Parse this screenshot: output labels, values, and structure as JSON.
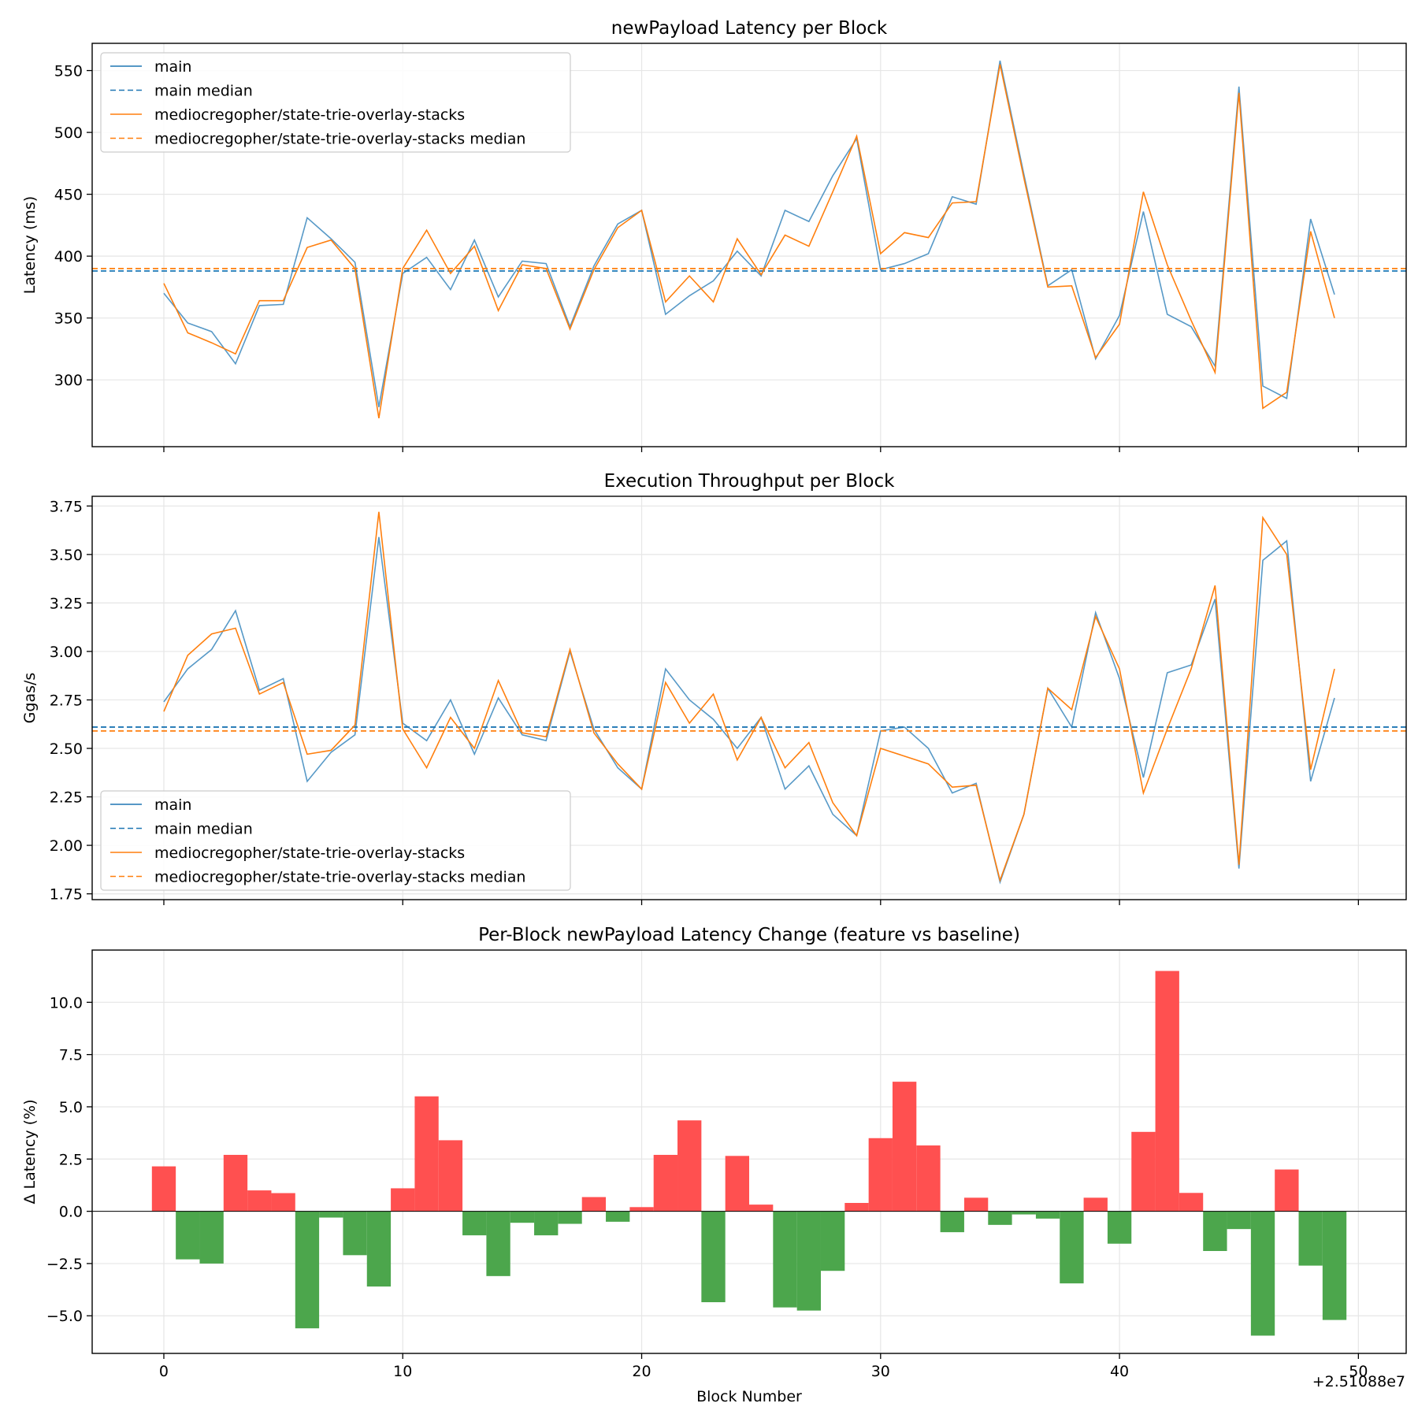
{
  "figure": {
    "xlabel": "Block Number",
    "x_offset_label": "+2.51088e7"
  },
  "chart_data": [
    {
      "type": "line",
      "title": "newPayload Latency per Block",
      "xlabel": "",
      "ylabel": "Latency (ms)",
      "xlim": [
        -3,
        52
      ],
      "ylim": [
        246,
        572
      ],
      "xticks": [
        0,
        10,
        20,
        30,
        40,
        50
      ],
      "yticks": [
        300,
        350,
        400,
        450,
        500,
        550
      ],
      "grid": true,
      "legend_position": "upper-left",
      "x": [
        0,
        1,
        2,
        3,
        4,
        5,
        6,
        7,
        8,
        9,
        10,
        11,
        12,
        13,
        14,
        15,
        16,
        17,
        18,
        19,
        20,
        21,
        22,
        23,
        24,
        25,
        26,
        27,
        28,
        29,
        30,
        31,
        32,
        33,
        34,
        35,
        36,
        37,
        38,
        39,
        40,
        41,
        42,
        43,
        44,
        45,
        46,
        47,
        48,
        49
      ],
      "series": [
        {
          "name": "main",
          "color": "#1f77b4",
          "style": "solid",
          "values": [
            370,
            346,
            339,
            313,
            360,
            361,
            431,
            414,
            395,
            278,
            386,
            399,
            373,
            413,
            367,
            396,
            394,
            343,
            392,
            426,
            437,
            353,
            368,
            380,
            404,
            384,
            437,
            428,
            465,
            495,
            389,
            394,
            402,
            448,
            442,
            558,
            466,
            376,
            389,
            317,
            352,
            436,
            353,
            343,
            311,
            537,
            295,
            285,
            430,
            369
          ]
        },
        {
          "name": "main median",
          "color": "#1f77b4",
          "style": "dashed",
          "median": 388
        },
        {
          "name": "mediocregopher/state-trie-overlay-stacks",
          "color": "#ff7f0e",
          "style": "solid",
          "values": [
            378,
            338,
            330,
            321,
            364,
            364,
            407,
            413,
            390,
            269,
            390,
            421,
            386,
            408,
            356,
            393,
            390,
            341,
            389,
            423,
            437,
            363,
            384,
            363,
            414,
            385,
            417,
            408,
            452,
            497,
            402,
            419,
            415,
            443,
            444,
            555,
            463,
            375,
            376,
            318,
            345,
            452,
            393,
            348,
            306,
            532,
            277,
            290,
            420,
            350
          ]
        },
        {
          "name": "mediocregopher/state-trie-overlay-stacks median",
          "color": "#ff7f0e",
          "style": "dashed",
          "median": 390
        }
      ]
    },
    {
      "type": "line",
      "title": "Execution Throughput per Block",
      "xlabel": "",
      "ylabel": "Ggas/s",
      "xlim": [
        -3,
        52
      ],
      "ylim": [
        1.72,
        3.8
      ],
      "xticks": [
        0,
        10,
        20,
        30,
        40,
        50
      ],
      "yticks": [
        1.75,
        2.0,
        2.25,
        2.5,
        2.75,
        3.0,
        3.25,
        3.5,
        3.75
      ],
      "ytick_labels": [
        "1.75",
        "2.00",
        "2.25",
        "2.50",
        "2.75",
        "3.00",
        "3.25",
        "3.50",
        "3.75"
      ],
      "grid": true,
      "legend_position": "lower-left",
      "x": [
        0,
        1,
        2,
        3,
        4,
        5,
        6,
        7,
        8,
        9,
        10,
        11,
        12,
        13,
        14,
        15,
        16,
        17,
        18,
        19,
        20,
        21,
        22,
        23,
        24,
        25,
        26,
        27,
        28,
        29,
        30,
        31,
        32,
        33,
        34,
        35,
        36,
        37,
        38,
        39,
        40,
        41,
        42,
        43,
        44,
        45,
        46,
        47,
        48,
        49
      ],
      "series": [
        {
          "name": "main",
          "color": "#1f77b4",
          "style": "solid",
          "values": [
            2.74,
            2.91,
            3.01,
            3.21,
            2.8,
            2.86,
            2.33,
            2.48,
            2.57,
            3.59,
            2.63,
            2.54,
            2.75,
            2.47,
            2.76,
            2.57,
            2.54,
            3.0,
            2.6,
            2.4,
            2.29,
            2.91,
            2.75,
            2.65,
            2.5,
            2.66,
            2.29,
            2.41,
            2.16,
            2.05,
            2.59,
            2.61,
            2.5,
            2.27,
            2.32,
            1.81,
            2.16,
            2.81,
            2.61,
            3.2,
            2.86,
            2.35,
            2.89,
            2.93,
            3.27,
            1.88,
            3.47,
            3.57,
            2.33,
            2.76
          ]
        },
        {
          "name": "main median",
          "color": "#1f77b4",
          "style": "dashed",
          "median": 2.61
        },
        {
          "name": "mediocregopher/state-trie-overlay-stacks",
          "color": "#ff7f0e",
          "style": "solid",
          "values": [
            2.69,
            2.98,
            3.09,
            3.12,
            2.78,
            2.84,
            2.47,
            2.49,
            2.62,
            3.72,
            2.6,
            2.4,
            2.66,
            2.5,
            2.85,
            2.58,
            2.56,
            3.01,
            2.58,
            2.42,
            2.29,
            2.84,
            2.63,
            2.78,
            2.44,
            2.66,
            2.4,
            2.53,
            2.22,
            2.05,
            2.5,
            2.46,
            2.42,
            2.3,
            2.31,
            1.82,
            2.16,
            2.81,
            2.7,
            3.18,
            2.91,
            2.27,
            2.6,
            2.91,
            3.34,
            1.9,
            3.69,
            3.5,
            2.39,
            2.91
          ]
        },
        {
          "name": "mediocregopher/state-trie-overlay-stacks median",
          "color": "#ff7f0e",
          "style": "dashed",
          "median": 2.59
        }
      ]
    },
    {
      "type": "bar",
      "title": "Per-Block newPayload Latency Change (feature vs baseline)",
      "xlabel": "Block Number",
      "ylabel": "Δ Latency (%)",
      "xlim": [
        -3,
        52
      ],
      "ylim": [
        -6.8,
        12.5
      ],
      "xticks": [
        0,
        10,
        20,
        30,
        40,
        50
      ],
      "yticks": [
        -5.0,
        -2.5,
        0.0,
        2.5,
        5.0,
        7.5,
        10.0
      ],
      "ytick_labels": [
        "−5.0",
        "−2.5",
        "0.0",
        "2.5",
        "5.0",
        "7.5",
        "10.0"
      ],
      "grid": true,
      "positive_color": "#ff5050",
      "negative_color": "#4ca64c",
      "x": [
        0,
        1,
        2,
        3,
        4,
        5,
        6,
        7,
        8,
        9,
        10,
        11,
        12,
        13,
        14,
        15,
        16,
        17,
        18,
        19,
        20,
        21,
        22,
        23,
        24,
        25,
        26,
        27,
        28,
        29,
        30,
        31,
        32,
        33,
        34,
        35,
        36,
        37,
        38,
        39,
        40,
        41,
        42,
        43,
        44,
        45,
        46,
        47,
        48,
        49
      ],
      "values": [
        2.15,
        -2.3,
        -2.5,
        2.7,
        1.0,
        0.87,
        -5.6,
        -0.3,
        -2.1,
        -3.6,
        1.1,
        5.5,
        3.4,
        -1.15,
        -3.1,
        -0.55,
        -1.15,
        -0.6,
        0.68,
        -0.5,
        0.2,
        2.7,
        4.35,
        -4.35,
        2.65,
        0.32,
        -4.6,
        -4.75,
        -2.85,
        0.4,
        3.5,
        6.2,
        3.15,
        -1.0,
        0.65,
        -0.65,
        -0.15,
        -0.35,
        -3.45,
        0.65,
        -1.55,
        3.8,
        11.5,
        0.88,
        -1.9,
        -0.85,
        -5.95,
        2.0,
        -2.6,
        -5.2
      ]
    }
  ]
}
